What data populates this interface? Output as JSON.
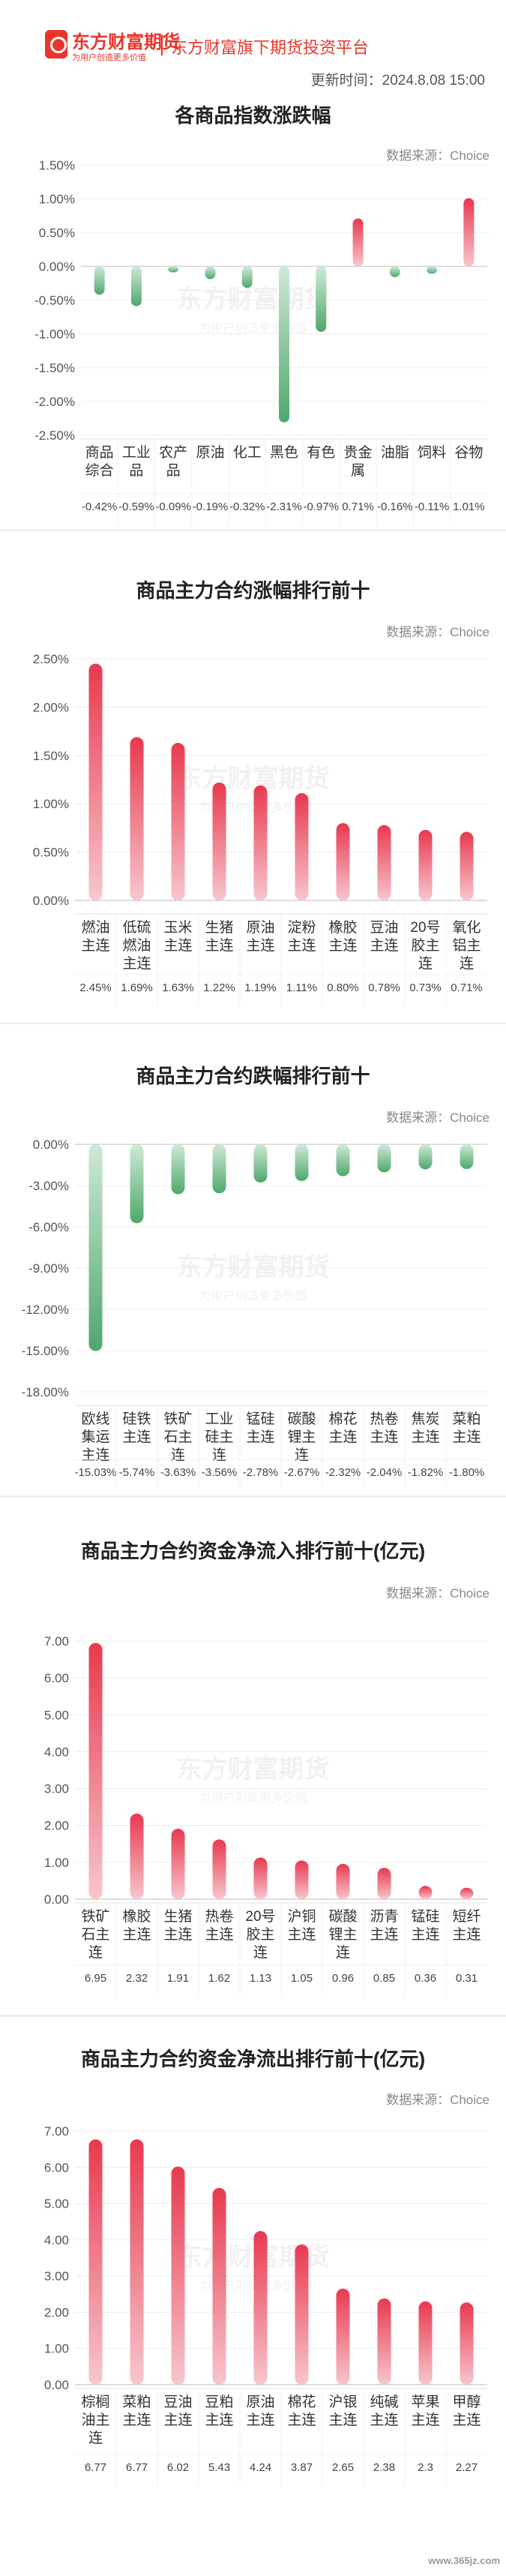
{
  "header": {
    "brand": "东方财富期货",
    "slogan": "为用户创造更多价值",
    "platform": "东方财富旗下期货投资平台",
    "update_time": "更新时间：2024.8.08 15:00"
  },
  "colors": {
    "up": "#e8394f",
    "down": "#4ea86b"
  },
  "footer": {
    "watermark": "www.365jz.com"
  },
  "chart_data": [
    {
      "type": "bar",
      "title": "各商品指数涨跌幅",
      "source": "数据来源：Choice",
      "categories": [
        "商品综合",
        "工业品",
        "农产品",
        "原油",
        "化工",
        "黑色",
        "有色",
        "贵金属",
        "油脂",
        "饲料",
        "谷物"
      ],
      "values": [
        -0.42,
        -0.59,
        -0.09,
        -0.19,
        -0.32,
        -2.31,
        -0.97,
        0.71,
        -0.16,
        -0.11,
        1.01
      ],
      "value_labels": [
        "-0.42%",
        "-0.59%",
        "-0.09%",
        "-0.19%",
        "-0.32%",
        "-2.31%",
        "-0.97%",
        "0.71%",
        "-0.16%",
        "-0.11%",
        "1.01%"
      ],
      "ylim": [
        -2.5,
        1.5
      ],
      "yticks": [
        "1.50%",
        "1.00%",
        "0.50%",
        "0.00%",
        "-0.50%",
        "-1.00%",
        "-1.50%",
        "-2.00%",
        "-2.50%"
      ],
      "grid": true
    },
    {
      "type": "bar",
      "title": "商品主力合约涨幅排行前十",
      "source": "数据来源：Choice",
      "categories": [
        "燃油主连",
        "低硫燃油主连",
        "玉米主连",
        "生猪主连",
        "原油主连",
        "淀粉主连",
        "橡胶主连",
        "豆油主连",
        "20号胶主连",
        "氧化铝主连"
      ],
      "values": [
        2.45,
        1.69,
        1.63,
        1.22,
        1.19,
        1.11,
        0.8,
        0.78,
        0.73,
        0.71
      ],
      "value_labels": [
        "2.45%",
        "1.69%",
        "1.63%",
        "1.22%",
        "1.19%",
        "1.11%",
        "0.80%",
        "0.78%",
        "0.73%",
        "0.71%"
      ],
      "ylim": [
        0,
        2.5
      ],
      "yticks": [
        "2.50%",
        "2.00%",
        "1.50%",
        "1.00%",
        "0.50%",
        "0.00%"
      ],
      "grid": true
    },
    {
      "type": "bar",
      "title": "商品主力合约跌幅排行前十",
      "source": "数据来源：Choice",
      "categories": [
        "欧线集运主连",
        "硅铁主连",
        "铁矿石主连",
        "工业硅主连",
        "锰硅主连",
        "碳酸锂主连",
        "棉花主连",
        "热卷主连",
        "焦炭主连",
        "菜粕主连"
      ],
      "values": [
        -15.03,
        -5.74,
        -3.63,
        -3.56,
        -2.78,
        -2.67,
        -2.32,
        -2.04,
        -1.82,
        -1.8
      ],
      "value_labels": [
        "-15.03%",
        "-5.74%",
        "-3.63%",
        "-3.56%",
        "-2.78%",
        "-2.67%",
        "-2.32%",
        "-2.04%",
        "-1.82%",
        "-1.80%"
      ],
      "ylim": [
        -18,
        0
      ],
      "yticks": [
        "0.00%",
        "-3.00%",
        "-6.00%",
        "-9.00%",
        "-12.00%",
        "-15.00%",
        "-18.00%"
      ],
      "grid": true
    },
    {
      "type": "bar",
      "title": "商品主力合约资金净流入排行前十(亿元)",
      "source": "数据来源：Choice",
      "categories": [
        "铁矿石主连",
        "橡胶主连",
        "生猪主连",
        "热卷主连",
        "20号胶主连",
        "沪铜主连",
        "碳酸锂主连",
        "沥青主连",
        "锰硅主连",
        "短纤主连"
      ],
      "values": [
        6.95,
        2.32,
        1.91,
        1.62,
        1.13,
        1.05,
        0.96,
        0.85,
        0.36,
        0.31
      ],
      "value_labels": [
        "6.95",
        "2.32",
        "1.91",
        "1.62",
        "1.13",
        "1.05",
        "0.96",
        "0.85",
        "0.36",
        "0.31"
      ],
      "ylim": [
        0,
        7
      ],
      "yticks": [
        "7.00",
        "6.00",
        "5.00",
        "4.00",
        "3.00",
        "2.00",
        "1.00",
        "0.00"
      ],
      "grid": true
    },
    {
      "type": "bar",
      "title": "商品主力合约资金净流出排行前十(亿元)",
      "source": "数据来源：Choice",
      "categories": [
        "棕榈油主连",
        "菜粕主连",
        "豆油主连",
        "豆粕主连",
        "原油主连",
        "棉花主连",
        "沪银主连",
        "纯碱主连",
        "苹果主连",
        "甲醇主连"
      ],
      "values": [
        6.77,
        6.77,
        6.02,
        5.43,
        4.24,
        3.87,
        2.65,
        2.38,
        2.3,
        2.27
      ],
      "value_labels": [
        "6.77",
        "6.77",
        "6.02",
        "5.43",
        "4.24",
        "3.87",
        "2.65",
        "2.38",
        "2.3",
        "2.27"
      ],
      "ylim": [
        0,
        7
      ],
      "yticks": [
        "7.00",
        "6.00",
        "5.00",
        "4.00",
        "3.00",
        "2.00",
        "1.00",
        "0.00"
      ],
      "grid": true
    }
  ]
}
